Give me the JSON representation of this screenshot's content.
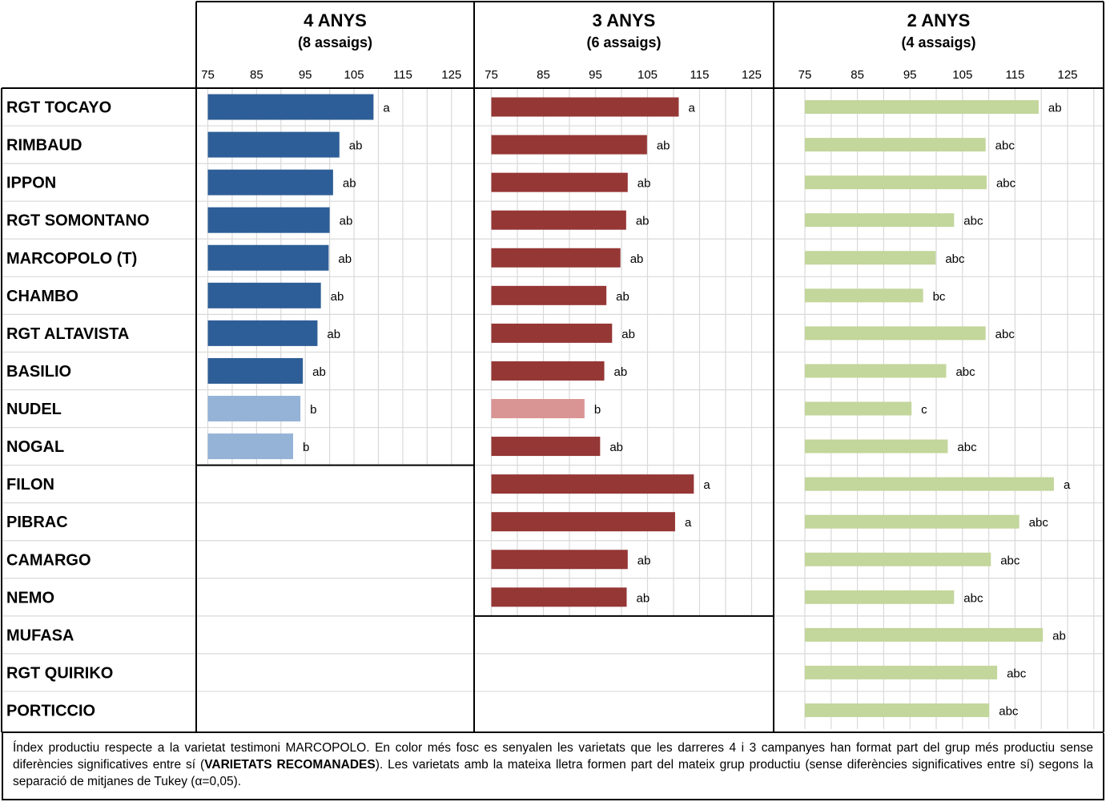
{
  "chart_data": {
    "type": "bar",
    "orientation": "horizontal",
    "x_ticks": [
      75,
      85,
      95,
      105,
      115,
      125
    ],
    "xlim": [
      75,
      130
    ],
    "grid": true,
    "categories": [
      "RGT TOCAYO",
      "RIMBAUD",
      "IPPON",
      "RGT SOMONTANO",
      "MARCOPOLO (T)",
      "CHAMBO",
      "RGT ALTAVISTA",
      "BASILIO",
      "NUDEL",
      "NOGAL",
      "FILON",
      "PIBRAC",
      "CAMARGO",
      "NEMO",
      "MUFASA",
      "RGT QUIRIKO",
      "PORTICCIO"
    ],
    "panels": [
      {
        "title": "4 ANYS",
        "subtitle": "(8 assaigs)",
        "colors": {
          "recommended": "#2E5E97",
          "other": "#95B3D7"
        },
        "values": [
          109,
          102,
          100.7,
          100,
          99.8,
          98.2,
          97.5,
          94.5,
          94,
          92.5,
          null,
          null,
          null,
          null,
          null,
          null,
          null
        ],
        "groups": [
          "a",
          "ab",
          "ab",
          "ab",
          "ab",
          "ab",
          "ab",
          "ab",
          "b",
          "b",
          null,
          null,
          null,
          null,
          null,
          null,
          null
        ],
        "recommended": [
          true,
          true,
          true,
          true,
          true,
          true,
          true,
          true,
          false,
          false,
          null,
          null,
          null,
          null,
          null,
          null,
          null
        ]
      },
      {
        "title": "3 ANYS",
        "subtitle": "(6 assaigs)",
        "colors": {
          "recommended": "#953735",
          "other": "#D99594"
        },
        "values": [
          111,
          104.9,
          101.2,
          100.9,
          99.8,
          97.1,
          98.2,
          96.7,
          92.9,
          95.9,
          113.9,
          110.3,
          101.2,
          101,
          null,
          null,
          null
        ],
        "groups": [
          "a",
          "ab",
          "ab",
          "ab",
          "ab",
          "ab",
          "ab",
          "ab",
          "b",
          "ab",
          "a",
          "a",
          "ab",
          "ab",
          null,
          null,
          null
        ],
        "recommended": [
          true,
          true,
          true,
          true,
          true,
          true,
          true,
          true,
          false,
          true,
          true,
          true,
          true,
          true,
          null,
          null,
          null
        ]
      },
      {
        "title": "2 ANYS",
        "subtitle": "(4 assaigs)",
        "colors": {
          "bar": "#C3D69B"
        },
        "values": [
          119.5,
          109.4,
          109.6,
          103.4,
          99.9,
          97.5,
          109.4,
          101.9,
          95.3,
          102.2,
          122.4,
          115.8,
          110.4,
          103.4,
          120.3,
          111.6,
          110.1
        ],
        "groups": [
          "ab",
          "abc",
          "abc",
          "abc",
          "abc",
          "bc",
          "abc",
          "abc",
          "c",
          "abc",
          "a",
          "abc",
          "abc",
          "abc",
          "ab",
          "abc",
          "abc"
        ]
      }
    ]
  },
  "note": {
    "text_before": "Índex productiu respecte a la varietat testimoni MARCOPOLO. En color més fosc es senyalen les varietats que les darreres 4 i 3 campanyes han format part del grup més productiu sense diferències significatives entre sí (",
    "highlight": "VARIETATS RECOMANADES",
    "text_after": "). Les varietats amb la mateixa lletra formen part del mateix grup productiu (sense diferències significatives entre sí) segons la separació de mitjanes de Tukey (α=0,05)."
  }
}
